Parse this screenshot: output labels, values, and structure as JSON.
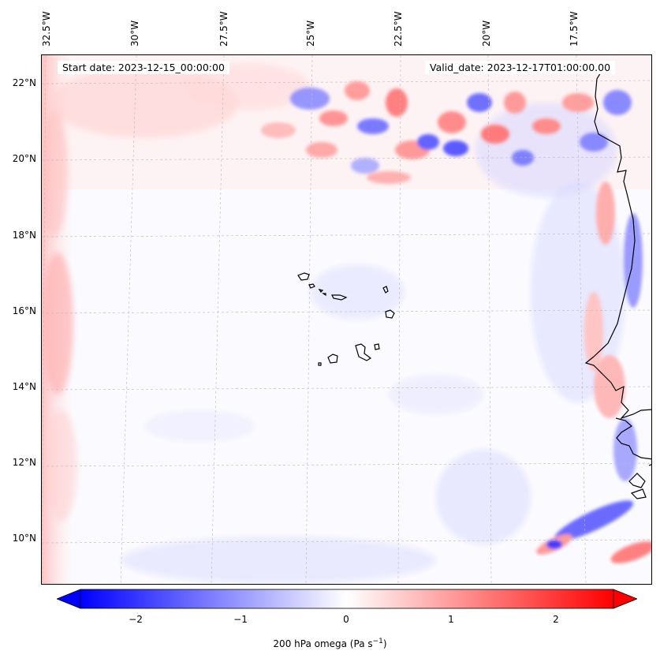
{
  "map": {
    "start_date": "Start date: 2023-12-15_00:00:00",
    "valid_date": "Valid_date: 2023-12-17T01:00:00.00",
    "longitude_labels": [
      "32.5°W",
      "30°W",
      "27.5°W",
      "25°W",
      "22.5°W",
      "20°W",
      "17.5°W"
    ],
    "latitude_labels": [
      "22°N",
      "20°N",
      "18°N",
      "16°N",
      "14°N",
      "12°N",
      "10°N"
    ],
    "field": "200 hPa omega",
    "colormap": "bwr",
    "colors": {
      "negative": "#0000ff",
      "zero": "#ffffff",
      "positive": "#ff0000",
      "coastline": "#000000",
      "grid": "#bbbbbb"
    }
  },
  "colorbar": {
    "ticks": [
      "−2",
      "−1",
      "0",
      "1",
      "2"
    ],
    "range": [
      -2.6,
      2.6
    ],
    "label_prefix": "200 hPa omega (Pa s",
    "label_exp": "−1",
    "label_suffix": ")"
  }
}
